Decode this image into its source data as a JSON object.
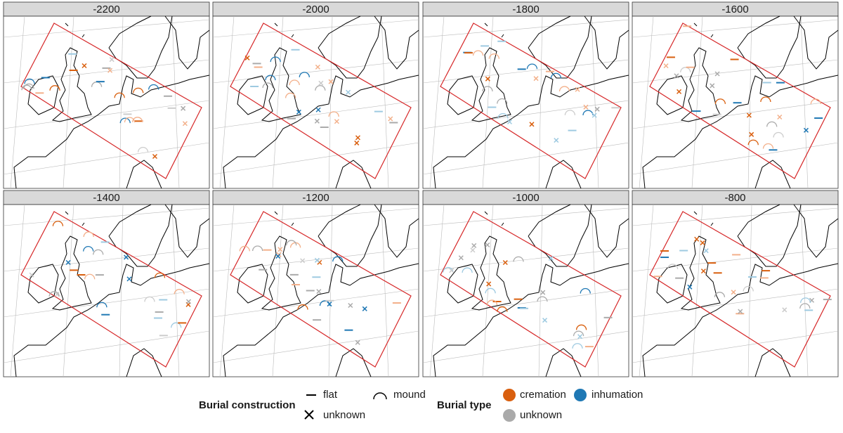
{
  "panels": [
    {
      "title": "-2200"
    },
    {
      "title": "-2000"
    },
    {
      "title": "-1800"
    },
    {
      "title": "-1600"
    },
    {
      "title": "-1400"
    },
    {
      "title": "-1200"
    },
    {
      "title": "-1000"
    },
    {
      "title": "-800"
    }
  ],
  "legend": {
    "construction": {
      "title": "Burial construction",
      "flat": "flat",
      "unknown": "unknown",
      "mound": "mound"
    },
    "type": {
      "title": "Burial type",
      "cremation": "cremation",
      "inhumation": "inhumation",
      "unknown": "unknown"
    }
  }
}
